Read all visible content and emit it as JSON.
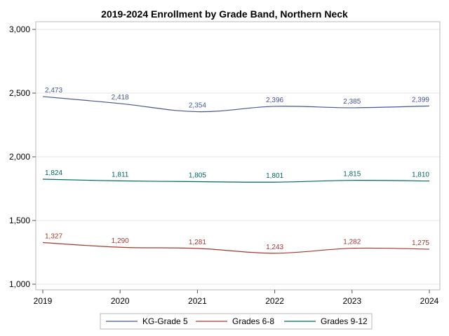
{
  "chart_data": {
    "type": "line",
    "title": "2019-2024 Enrollment by Grade Band, Northern Neck",
    "xlabel": "",
    "ylabel": "",
    "categories": [
      "2019",
      "2020",
      "2021",
      "2022",
      "2023",
      "2024"
    ],
    "ylim": [
      1000,
      3000
    ],
    "yticks": [
      "1,000",
      "1,500",
      "2,000",
      "2,500",
      "3,000"
    ],
    "grid": true,
    "legend_position": "bottom",
    "series": [
      {
        "name": "KG-Grade 5",
        "color": "#445694",
        "values": [
          2473,
          2418,
          2354,
          2396,
          2385,
          2399
        ],
        "labels": [
          "2,473",
          "2,418",
          "2,354",
          "2,396",
          "2,385",
          "2,399"
        ]
      },
      {
        "name": "Grades 6-8",
        "color": "#A23A2E",
        "values": [
          1327,
          1290,
          1281,
          1243,
          1282,
          1275
        ],
        "labels": [
          "1,327",
          "1,290",
          "1,281",
          "1,243",
          "1,282",
          "1,275"
        ]
      },
      {
        "name": "Grades 9-12",
        "color": "#01665E",
        "values": [
          1824,
          1811,
          1805,
          1801,
          1815,
          1810
        ],
        "labels": [
          "1,824",
          "1,811",
          "1,805",
          "1,801",
          "1,815",
          "1,810"
        ]
      }
    ]
  }
}
